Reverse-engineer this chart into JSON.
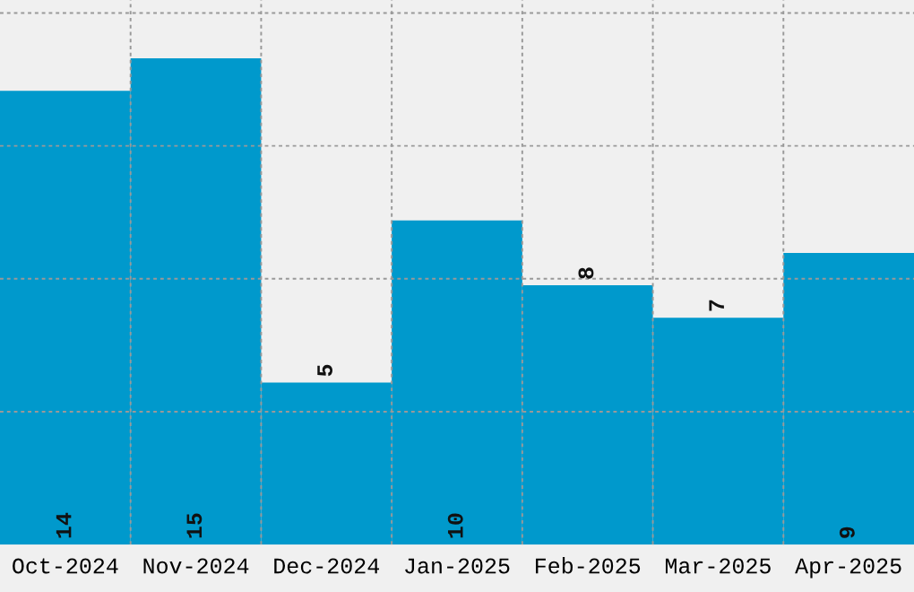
{
  "chart_data": {
    "type": "bar",
    "categories": [
      "Oct-2024",
      "Nov-2024",
      "Dec-2024",
      "Jan-2025",
      "Feb-2025",
      "Mar-2025",
      "Apr-2025"
    ],
    "values": [
      14,
      15,
      5,
      10,
      8,
      7,
      9
    ],
    "color": "#0099cc",
    "data_labels": true,
    "ylim": [
      0,
      16.8
    ],
    "yticks": [
      {
        "value": 4.1,
        "label": null
      },
      {
        "value": 8.2,
        "label": null
      },
      {
        "value": 12.3,
        "label": null
      },
      {
        "value": 16.4,
        "label": null
      }
    ],
    "tick_labels": "x",
    "grid": true
  }
}
